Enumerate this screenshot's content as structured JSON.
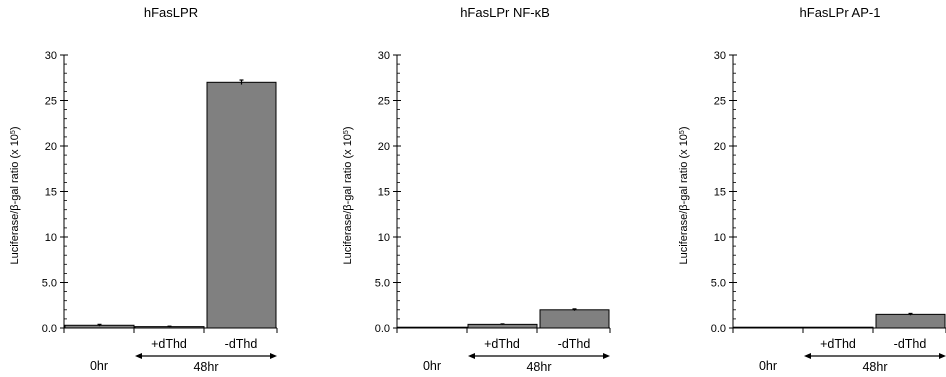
{
  "chart_data": [
    {
      "type": "bar",
      "title": "hFasLPR",
      "ylabel_main": "Luciferase/β-gal ratio (x 10",
      "ylabel_exp": "5",
      "ylabel_close": ")",
      "ylim": [
        0,
        30
      ],
      "ytick_labels": [
        "0.0",
        "5.0",
        "10",
        "15",
        "20",
        "25",
        "30"
      ],
      "ytick_values": [
        0,
        5,
        10,
        15,
        20,
        25,
        30
      ],
      "categories": [
        "0hr",
        "+dThd",
        "-dThd"
      ],
      "group_label": "48hr",
      "values": [
        0.3,
        0.15,
        27.0
      ],
      "errors": [
        0.1,
        0.05,
        0.25
      ],
      "bar_color": "#808080"
    },
    {
      "type": "bar",
      "title": "hFasLPr NF-κB",
      "ylabel_main": "Luciferase/β-gal ratio (x 10",
      "ylabel_exp": "5",
      "ylabel_close": ")",
      "ylim": [
        0,
        30
      ],
      "ytick_labels": [
        "0.0",
        "5.0",
        "10",
        "15",
        "20",
        "25",
        "30"
      ],
      "ytick_values": [
        0,
        5,
        10,
        15,
        20,
        25,
        30
      ],
      "categories": [
        "0hr",
        "+dThd",
        "-dThd"
      ],
      "group_label": "48hr",
      "values": [
        0.0,
        0.4,
        2.0
      ],
      "errors": [
        0.0,
        0.05,
        0.1
      ],
      "bar_color": "#808080"
    },
    {
      "type": "bar",
      "title": "hFasLPr AP-1",
      "ylabel_main": "Luciferase/β-gal ratio (x 10",
      "ylabel_exp": "5",
      "ylabel_close": ")",
      "ylim": [
        0,
        30
      ],
      "ytick_labels": [
        "0.0",
        "5.0",
        "10",
        "15",
        "20",
        "25",
        "30"
      ],
      "ytick_values": [
        0,
        5,
        10,
        15,
        20,
        25,
        30
      ],
      "categories": [
        "0hr",
        "+dThd",
        "-dThd"
      ],
      "group_label": "48hr",
      "values": [
        0.0,
        0.0,
        1.5
      ],
      "errors": [
        0.0,
        0.0,
        0.1
      ],
      "bar_color": "#808080"
    }
  ]
}
